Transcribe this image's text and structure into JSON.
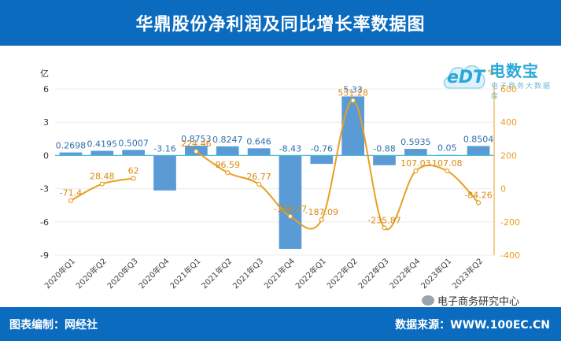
{
  "header": {
    "title": "华鼎股份净利润及同比增长率数据图"
  },
  "logo": {
    "brand": "电数宝",
    "edt": "eDT",
    "sub": "电子商务大数据库",
    "pct": "%"
  },
  "footer": {
    "left": "图表编制：网经社",
    "right": "数据来源：WWW.100EC.CN"
  },
  "watermark": {
    "text": "电子商务研究中心",
    "icon": "wechat-icon"
  },
  "colors": {
    "bar": "#5b9bd5",
    "line": "#e8a020",
    "zero_line": "#4dbbd9",
    "header": "#0b6bbf"
  },
  "chart_data": {
    "type": "bar+line",
    "categories": [
      "2020年Q1",
      "2020年Q2",
      "2020年Q3",
      "2020年Q4",
      "2021年Q1",
      "2021年Q2",
      "2021年Q3",
      "2021年Q4",
      "2022年Q1",
      "2022年Q2",
      "2022年Q3",
      "2022年Q4",
      "2023年Q1",
      "2023年Q2"
    ],
    "left_axis": {
      "unit": "亿",
      "ylim": [
        -9,
        6
      ],
      "ticks": [
        6,
        3,
        0,
        -3,
        -6,
        -9
      ]
    },
    "right_axis": {
      "ylim": [
        -400,
        600
      ],
      "ticks": [
        600,
        400,
        200,
        0,
        -200,
        -400
      ],
      "zero_value": 200
    },
    "series": [
      {
        "name": "净利润",
        "type": "bar",
        "axis": "left",
        "values": [
          0.2698,
          0.4195,
          0.5007,
          -3.16,
          0.8753,
          0.8247,
          0.646,
          -8.43,
          -0.76,
          5.33,
          -0.88,
          0.5935,
          0.05,
          0.8504
        ],
        "labels": [
          "0.2698",
          "0.4195",
          "0.5007",
          "-3.16",
          "0.8753",
          "0.8247",
          "0.646",
          "-8.43",
          "-0.76",
          "5.33",
          "-0.88",
          "0.5935",
          "0.05",
          "0.8504"
        ]
      },
      {
        "name": "同比增长率",
        "type": "line",
        "axis": "right",
        "values": [
          -71.4,
          28.48,
          62,
          null,
          224.46,
          96.59,
          26.77,
          -166.77,
          -187.09,
          531.28,
          -235.87,
          107.03,
          107.08,
          -84.26
        ],
        "labels": [
          "-71.4",
          "28.48",
          "62",
          "",
          "224.46",
          "96.59",
          "26.77",
          "-166.77",
          "-187.09",
          "531.28",
          "-235.87",
          "107.03",
          "107.08",
          "-84.26"
        ]
      }
    ]
  }
}
